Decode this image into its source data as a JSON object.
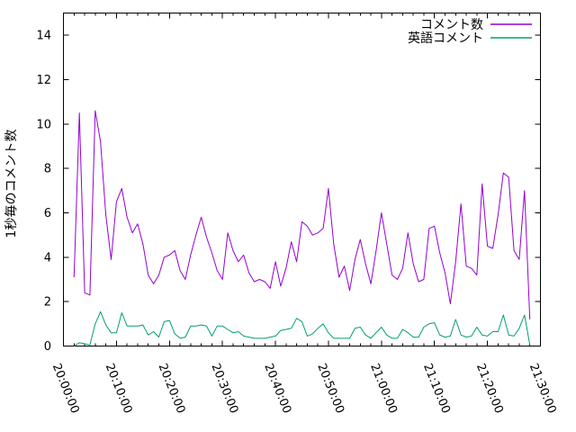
{
  "colors": {
    "background": "#ffffff",
    "axis": "#000000",
    "text": "#000000",
    "series_comment_count": "#9400d3",
    "series_english_comment": "#009e73"
  },
  "y_axis": {
    "title": "1秒毎のコメント数",
    "tick_labels": [
      "0",
      "2",
      "4",
      "6",
      "8",
      "10",
      "12",
      "14"
    ],
    "tick_values": [
      0,
      2,
      4,
      6,
      8,
      10,
      12,
      14
    ]
  },
  "x_axis": {
    "tick_labels": [
      "20:00:00",
      "20:10:00",
      "20:20:00",
      "20:30:00",
      "20:40:00",
      "20:50:00",
      "21:00:00",
      "21:10:00",
      "21:20:00",
      "21:30:00"
    ],
    "range": [
      "20:00:00",
      "21:30:00"
    ],
    "minor_tick_step_minutes": 2
  },
  "legend": {
    "items": [
      {
        "label": "コメント数",
        "color": "#9400d3"
      },
      {
        "label": "英語コメント",
        "color": "#009e73"
      }
    ]
  },
  "chart_data": {
    "type": "line",
    "title": "",
    "xlabel": "",
    "ylabel": "1秒毎のコメント数",
    "ylim": [
      0,
      15
    ],
    "x_range": [
      "20:00:00",
      "21:30:00"
    ],
    "grid": false,
    "legend_position": "top-right-inside",
    "times": [
      "20:02:00",
      "20:03:00",
      "20:04:00",
      "20:05:00",
      "20:06:00",
      "20:07:00",
      "20:08:00",
      "20:09:00",
      "20:10:00",
      "20:11:00",
      "20:12:00",
      "20:13:00",
      "20:14:00",
      "20:15:00",
      "20:16:00",
      "20:17:00",
      "20:18:00",
      "20:19:00",
      "20:20:00",
      "20:21:00",
      "20:22:00",
      "20:23:00",
      "20:24:00",
      "20:25:00",
      "20:26:00",
      "20:27:00",
      "20:28:00",
      "20:29:00",
      "20:30:00",
      "20:31:00",
      "20:32:00",
      "20:33:00",
      "20:34:00",
      "20:35:00",
      "20:36:00",
      "20:37:00",
      "20:38:00",
      "20:39:00",
      "20:40:00",
      "20:41:00",
      "20:42:00",
      "20:43:00",
      "20:44:00",
      "20:45:00",
      "20:46:00",
      "20:47:00",
      "20:48:00",
      "20:49:00",
      "20:50:00",
      "20:51:00",
      "20:52:00",
      "20:53:00",
      "20:54:00",
      "20:55:00",
      "20:56:00",
      "20:57:00",
      "20:58:00",
      "20:59:00",
      "21:00:00",
      "21:01:00",
      "21:02:00",
      "21:03:00",
      "21:04:00",
      "21:05:00",
      "21:06:00",
      "21:07:00",
      "21:08:00",
      "21:09:00",
      "21:10:00",
      "21:11:00",
      "21:12:00",
      "21:13:00",
      "21:14:00",
      "21:15:00",
      "21:16:00",
      "21:17:00",
      "21:18:00",
      "21:19:00",
      "21:20:00",
      "21:21:00",
      "21:22:00",
      "21:23:00",
      "21:24:00",
      "21:25:00",
      "21:26:00",
      "21:27:00",
      "21:28:00"
    ],
    "series": [
      {
        "name": "コメント数",
        "color": "#9400d3",
        "values": [
          3.1,
          10.5,
          2.4,
          2.3,
          10.6,
          9.2,
          5.9,
          3.9,
          6.5,
          7.1,
          5.8,
          5.1,
          5.5,
          4.6,
          3.2,
          2.8,
          3.2,
          4.0,
          4.1,
          4.3,
          3.4,
          3.0,
          4.1,
          5.0,
          5.8,
          4.9,
          4.2,
          3.4,
          3.0,
          5.1,
          4.3,
          3.8,
          4.1,
          3.3,
          2.9,
          3.0,
          2.9,
          2.6,
          3.8,
          2.7,
          3.5,
          4.7,
          3.8,
          5.6,
          5.4,
          5.0,
          5.1,
          5.3,
          7.1,
          4.6,
          3.1,
          3.6,
          2.5,
          3.9,
          4.8,
          3.7,
          2.8,
          4.3,
          6.0,
          4.6,
          3.2,
          3.0,
          3.5,
          5.1,
          3.7,
          2.9,
          3.0,
          5.3,
          5.4,
          4.2,
          3.3,
          1.9,
          3.8,
          6.4,
          3.6,
          3.5,
          3.2,
          7.3,
          4.5,
          4.4,
          5.9,
          7.8,
          7.6,
          4.3,
          3.9,
          7.0,
          1.2
        ]
      },
      {
        "name": "英語コメント",
        "color": "#009e73",
        "values": [
          0.0,
          0.15,
          0.1,
          0.05,
          1.0,
          1.55,
          0.95,
          0.6,
          0.6,
          1.5,
          0.9,
          0.9,
          0.9,
          0.95,
          0.5,
          0.65,
          0.4,
          1.1,
          1.15,
          0.55,
          0.35,
          0.4,
          0.9,
          0.9,
          0.95,
          0.9,
          0.45,
          0.9,
          0.9,
          0.75,
          0.6,
          0.65,
          0.45,
          0.4,
          0.35,
          0.35,
          0.35,
          0.4,
          0.45,
          0.7,
          0.75,
          0.8,
          1.25,
          1.1,
          0.45,
          0.55,
          0.8,
          1.0,
          0.6,
          0.35,
          0.35,
          0.35,
          0.35,
          0.8,
          0.85,
          0.5,
          0.35,
          0.6,
          0.85,
          0.5,
          0.35,
          0.35,
          0.75,
          0.6,
          0.4,
          0.4,
          0.85,
          1.0,
          1.05,
          0.5,
          0.4,
          0.45,
          1.2,
          0.5,
          0.4,
          0.45,
          0.85,
          0.5,
          0.45,
          0.65,
          0.65,
          1.4,
          0.5,
          0.45,
          0.8,
          1.4,
          0.05
        ]
      }
    ]
  }
}
